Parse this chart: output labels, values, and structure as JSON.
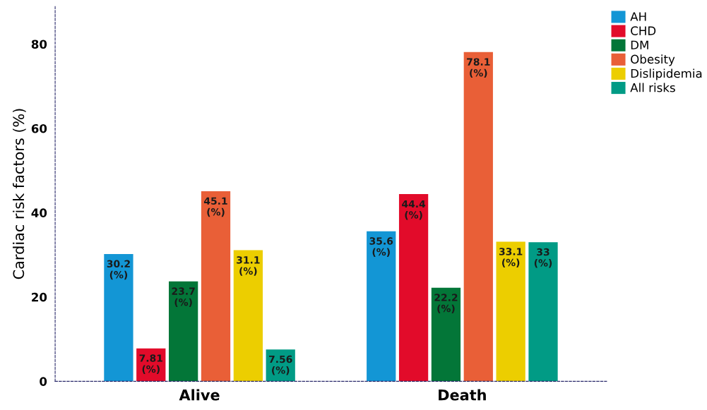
{
  "chart_data": {
    "type": "bar",
    "ylabel": "Cardiac risk factors (%)",
    "categories": [
      "Alive",
      "Death"
    ],
    "series": [
      {
        "name": "AH",
        "color": "#1396d5",
        "values": [
          30.2,
          35.6
        ],
        "value_labels": [
          "30.2\n(%)",
          "35.6\n(%)"
        ]
      },
      {
        "name": "CHD",
        "color": "#e20b2a",
        "values": [
          7.81,
          44.4
        ],
        "value_labels": [
          "7.81\n(%)",
          "44.4\n(%)"
        ]
      },
      {
        "name": "DM",
        "color": "#037638",
        "values": [
          23.7,
          22.2
        ],
        "value_labels": [
          "23.7\n(%)",
          "22.2\n(%)"
        ]
      },
      {
        "name": "Obesity",
        "color": "#e95f37",
        "values": [
          45.1,
          78.1
        ],
        "value_labels": [
          "45.1\n(%)",
          "78.1\n(%)"
        ]
      },
      {
        "name": "Dislipidemia",
        "color": "#ecce00",
        "values": [
          31.1,
          33.1
        ],
        "value_labels": [
          "31.1\n(%)",
          "33.1\n(%)"
        ]
      },
      {
        "name": "All risks",
        "color": "#019b85",
        "values": [
          7.56,
          33
        ],
        "value_labels": [
          "7.56\n(%)",
          "33\n(%)"
        ]
      }
    ],
    "ylim": [
      0,
      89
    ],
    "yticks": [
      0,
      20,
      40,
      60,
      80
    ],
    "grid": false,
    "legend": "top right"
  }
}
